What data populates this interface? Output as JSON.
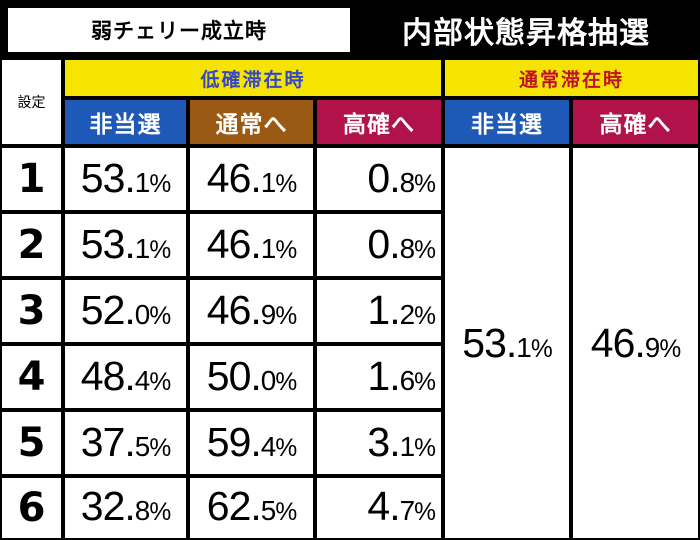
{
  "header": {
    "trigger": "弱チェリー成立時",
    "title": "内部状態昇格抽選"
  },
  "table": {
    "setting_label": "設定",
    "groups": {
      "low": {
        "label": "低確滞在時",
        "label_color": "#3447c8",
        "columns": [
          {
            "label": "非当選",
            "color": "#1f59b8"
          },
          {
            "label": "通常へ",
            "color": "#9a5a14"
          },
          {
            "label": "高確へ",
            "color": "#b2124a"
          }
        ]
      },
      "normal": {
        "label": "通常滞在時",
        "label_color": "#c0102a",
        "columns": [
          {
            "label": "非当選",
            "color": "#1f59b8"
          },
          {
            "label": "高確へ",
            "color": "#b2124a"
          }
        ],
        "values": [
          "53.1%",
          "46.9%"
        ]
      }
    },
    "rows": [
      {
        "setting": "1",
        "values": [
          "53.1%",
          "46.1%",
          "0.8%"
        ]
      },
      {
        "setting": "2",
        "values": [
          "53.1%",
          "46.1%",
          "0.8%"
        ]
      },
      {
        "setting": "3",
        "values": [
          "52.0%",
          "46.9%",
          "1.2%"
        ]
      },
      {
        "setting": "4",
        "values": [
          "48.4%",
          "50.0%",
          "1.6%"
        ]
      },
      {
        "setting": "5",
        "values": [
          "37.5%",
          "59.4%",
          "3.1%"
        ]
      },
      {
        "setting": "6",
        "values": [
          "32.8%",
          "62.5%",
          "4.7%"
        ]
      }
    ]
  }
}
